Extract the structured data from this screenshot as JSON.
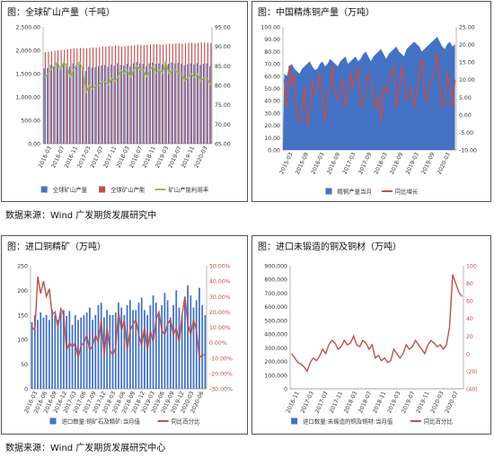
{
  "source_labels": [
    "数据来源：Wind  广发期货发展研究中",
    "数据来源：Wind  广发期货发展研究中心"
  ],
  "chart_data": [
    {
      "type": "bar",
      "title": "图：全球矿山产量（千吨）",
      "x_tick_labels": [
        "2016-03",
        "2016-07",
        "2016-11",
        "2017-03",
        "2017-07",
        "2017-11",
        "2018-03",
        "2018-07",
        "2018-11",
        "2019-03",
        "2019-07",
        "2019-11",
        "2020-03"
      ],
      "left_axis": {
        "min": 0,
        "max": 2500,
        "ticks": [
          "0.00",
          "500.00",
          "1,000.00",
          "1,500.00",
          "2,000.00",
          "2,500.00"
        ]
      },
      "right_axis": {
        "min": 65,
        "max": 95,
        "ticks": [
          "65.00",
          "70.00",
          "75.00",
          "80.00",
          "85.00",
          "90.00",
          "95.00"
        ]
      },
      "legend": [
        "全球矿山产量",
        "全球矿山产能",
        "矿山产能利用率"
      ],
      "colors": {
        "bar1": "#4472C4",
        "bar2": "#C0504D",
        "line": "#9BBB59"
      },
      "series": [
        {
          "name": "全球矿山产量",
          "axis": "left",
          "kind": "bar",
          "values": [
            1610,
            1620,
            1690,
            1640,
            1720,
            1640,
            1730,
            1700,
            1650,
            1720,
            1690,
            1700,
            1640,
            1560,
            1650,
            1630,
            1640,
            1660,
            1680,
            1690,
            1650,
            1700,
            1670,
            1720,
            1690,
            1670,
            1710,
            1660,
            1720,
            1750,
            1720,
            1710,
            1660,
            1720,
            1740,
            1710,
            1720,
            1700,
            1760,
            1710,
            1740,
            1720,
            1730,
            1710,
            1680,
            1700,
            1720,
            1700,
            1720,
            1690,
            1710,
            1720,
            1660
          ]
        },
        {
          "name": "全球矿山产能",
          "axis": "left",
          "kind": "bar",
          "values": [
            1960,
            1970,
            1980,
            1990,
            2000,
            2010,
            2010,
            2020,
            2030,
            2040,
            2040,
            2050,
            2040,
            2040,
            2050,
            2060,
            2060,
            2070,
            2080,
            2080,
            2090,
            2090,
            2100,
            2100,
            2080,
            2090,
            2100,
            2100,
            2110,
            2120,
            2110,
            2110,
            2120,
            2130,
            2130,
            2130,
            2120,
            2120,
            2130,
            2140,
            2140,
            2150,
            2150,
            2140,
            2150,
            2160,
            2160,
            2150,
            2160,
            2170,
            2170,
            2160,
            2150
          ]
        },
        {
          "name": "矿山产能利用率",
          "axis": "right",
          "kind": "line",
          "values": [
            82,
            83,
            84,
            85,
            86,
            84,
            86,
            85,
            82,
            84,
            85,
            86,
            84,
            78,
            80,
            79,
            80,
            80,
            81,
            81,
            80,
            82,
            81,
            82,
            84,
            83,
            84,
            82,
            84,
            85,
            84,
            84,
            82,
            84,
            85,
            83,
            84,
            83,
            86,
            83,
            84,
            84,
            83,
            83,
            81,
            82,
            83,
            82,
            83,
            81,
            82,
            82,
            80
          ]
        }
      ]
    },
    {
      "type": "area",
      "title": "图：中国精炼铜产量（万吨）",
      "x_tick_labels": [
        "2015-03",
        "2015-09",
        "2016-03",
        "2016-09",
        "2017-03",
        "2017-09",
        "2018-03",
        "2018-09",
        "2019-03",
        "2019-09",
        "2020-03"
      ],
      "left_axis": {
        "min": 0,
        "max": 100,
        "ticks": [
          "0.00",
          "10.00",
          "20.00",
          "30.00",
          "40.00",
          "50.00",
          "60.00",
          "70.00",
          "80.00",
          "90.00",
          "100.00"
        ]
      },
      "right_axis": {
        "min": -10,
        "max": 25,
        "ticks": [
          "-10.00",
          "-5.00",
          "0.00",
          "5.00",
          "10.00",
          "15.00",
          "20.00",
          "25.00"
        ]
      },
      "legend": [
        "精铜产量当月",
        "同比增长"
      ],
      "colors": {
        "area": "#4472C4",
        "line": "#C0504D"
      },
      "series": [
        {
          "name": "精铜产量当月",
          "axis": "left",
          "kind": "area",
          "values": [
            62,
            60,
            68,
            70,
            66,
            64,
            62,
            66,
            68,
            70,
            72,
            68,
            65,
            66,
            70,
            72,
            68,
            70,
            74,
            72,
            70,
            68,
            72,
            74,
            76,
            70,
            72,
            74,
            76,
            72,
            74,
            78,
            80,
            76,
            72,
            76,
            78,
            80,
            82,
            78,
            74,
            78,
            80,
            82,
            84,
            80,
            78,
            76,
            82,
            84,
            86,
            88,
            86,
            84,
            80,
            82,
            84,
            86,
            88,
            90,
            92,
            88,
            84,
            82,
            86,
            88,
            84,
            86
          ]
        },
        {
          "name": "同比增长",
          "axis": "right",
          "kind": "line",
          "values": [
            10,
            2,
            14,
            8,
            12,
            0,
            -2,
            2,
            8,
            -3,
            0,
            10,
            6,
            8,
            12,
            4,
            -2,
            6,
            8,
            14,
            6,
            4,
            8,
            10,
            2,
            6,
            12,
            8,
            10,
            14,
            2,
            4,
            8,
            12,
            10,
            4,
            2,
            6,
            -2,
            8,
            6,
            10,
            12,
            14,
            2,
            6,
            14,
            10,
            4,
            6,
            8,
            2,
            6,
            12,
            16,
            6,
            4,
            8,
            10,
            12,
            18,
            10,
            2,
            4,
            12,
            8,
            2,
            10
          ]
        }
      ]
    },
    {
      "type": "bar",
      "title": "图：进口铜精矿（万吨）",
      "x_tick_labels": [
        "2016-03",
        "2016-06",
        "2016-09",
        "2016-12",
        "2017-03",
        "2017-06",
        "2017-09",
        "2017-12",
        "2018-03",
        "2018-06",
        "2018-09",
        "2018-12",
        "2019-03",
        "2019-06",
        "2019-09",
        "2019-12",
        "2020-03",
        "2020-06"
      ],
      "left_axis": {
        "min": 0,
        "max": 250,
        "ticks": [
          "0",
          "50",
          "100",
          "150",
          "200",
          "250"
        ]
      },
      "right_axis": {
        "min": -30,
        "max": 50,
        "ticks": [
          "-30.00%",
          "-20.00%",
          "-10.00%",
          "0.00%",
          "10.00%",
          "20.00%",
          "30.00%",
          "40.00%",
          "50.00%"
        ]
      },
      "legend": [
        "进口数量:铜矿石及精矿:当月值",
        "同比百分比"
      ],
      "colors": {
        "bar": "#4472C4",
        "line": "#C0504D"
      },
      "series": [
        {
          "name": "进口数量:铜矿石及精矿:当月值",
          "axis": "left",
          "kind": "bar",
          "values": [
            135,
            150,
            140,
            155,
            145,
            150,
            140,
            160,
            150,
            140,
            155,
            160,
            148,
            158,
            130,
            150,
            140,
            145,
            150,
            155,
            165,
            140,
            150,
            170,
            175,
            145,
            160,
            150,
            150,
            155,
            175,
            165,
            150,
            170,
            180,
            160,
            160,
            175,
            185,
            160,
            150,
            170,
            190,
            175,
            150,
            170,
            195,
            180,
            145,
            170,
            200,
            165,
            150,
            175,
            210,
            190,
            165,
            180,
            205,
            170,
            150
          ]
        },
        {
          "name": "同比百分比",
          "axis": "right",
          "kind": "line",
          "values": [
            10,
            8,
            43,
            32,
            40,
            30,
            35,
            18,
            20,
            10,
            22,
            18,
            -5,
            0,
            -3,
            0,
            -10,
            -2,
            0,
            5,
            -5,
            -2,
            5,
            0,
            15,
            -8,
            10,
            -5,
            -8,
            -3,
            20,
            8,
            15,
            -5,
            8,
            12,
            15,
            5,
            -2,
            10,
            -5,
            8,
            0,
            15,
            20,
            8,
            5,
            12,
            15,
            5,
            10,
            0,
            18,
            30,
            12,
            5,
            15,
            8,
            -10,
            -8,
            -8
          ]
        }
      ]
    },
    {
      "type": "bar",
      "title": "图：进口未锻造的铜及铜材（万吨）",
      "x_tick_labels": [
        "2016-11",
        "2017-03",
        "2017-07",
        "2017-11",
        "2018-03",
        "2018-07",
        "2018-11",
        "2019-03",
        "2019-07",
        "2019-11",
        "2020-03",
        "2020-07"
      ],
      "left_axis": {
        "min": 0,
        "max": 900000,
        "ticks": [
          "0",
          "100,000",
          "200,000",
          "300,000",
          "400,000",
          "500,000",
          "600,000",
          "700,000",
          "800,000",
          "900,000"
        ]
      },
      "right_axis": {
        "min": -40,
        "max": 100,
        "ticks": [
          "(40)",
          "(20)",
          "0",
          "20",
          "40",
          "60",
          "80",
          "100"
        ]
      },
      "legend": [
        "进口数量:未锻造的铜及铜材:当月值",
        "同比百分比"
      ],
      "colors": {
        "bar": "#4472C4",
        "line": "#C0504D"
      },
      "series": [
        {
          "name": "进口数量:未锻造的铜及铜材:当月值",
          "axis": "left",
          "kind": "bar",
          "values": [
            430,
            330,
            490,
            380,
            300,
            280,
            270,
            310,
            330,
            300,
            380,
            320,
            280,
            390,
            410,
            360,
            330,
            350,
            360,
            370,
            390,
            380,
            350,
            370,
            400,
            420,
            390,
            410,
            380,
            390,
            350,
            380,
            410,
            400,
            360,
            380,
            390,
            410,
            350,
            380,
            390,
            370,
            400,
            420,
            380,
            350,
            410,
            380,
            400,
            420,
            440,
            500,
            620,
            760,
            680,
            600
          ]
        },
        {
          "name": "同比百分比",
          "axis": "right",
          "kind": "line",
          "values": [
            0,
            -5,
            -10,
            -12,
            -15,
            -20,
            -10,
            -5,
            -8,
            -3,
            5,
            0,
            10,
            15,
            12,
            5,
            8,
            15,
            10,
            12,
            20,
            10,
            8,
            15,
            12,
            5,
            10,
            -5,
            -2,
            -8,
            -5,
            -10,
            -8,
            5,
            0,
            -5,
            0,
            10,
            5,
            8,
            15,
            10,
            5,
            0,
            10,
            15,
            12,
            8,
            10,
            5,
            10,
            30,
            90,
            80,
            70,
            65
          ]
        }
      ]
    }
  ]
}
